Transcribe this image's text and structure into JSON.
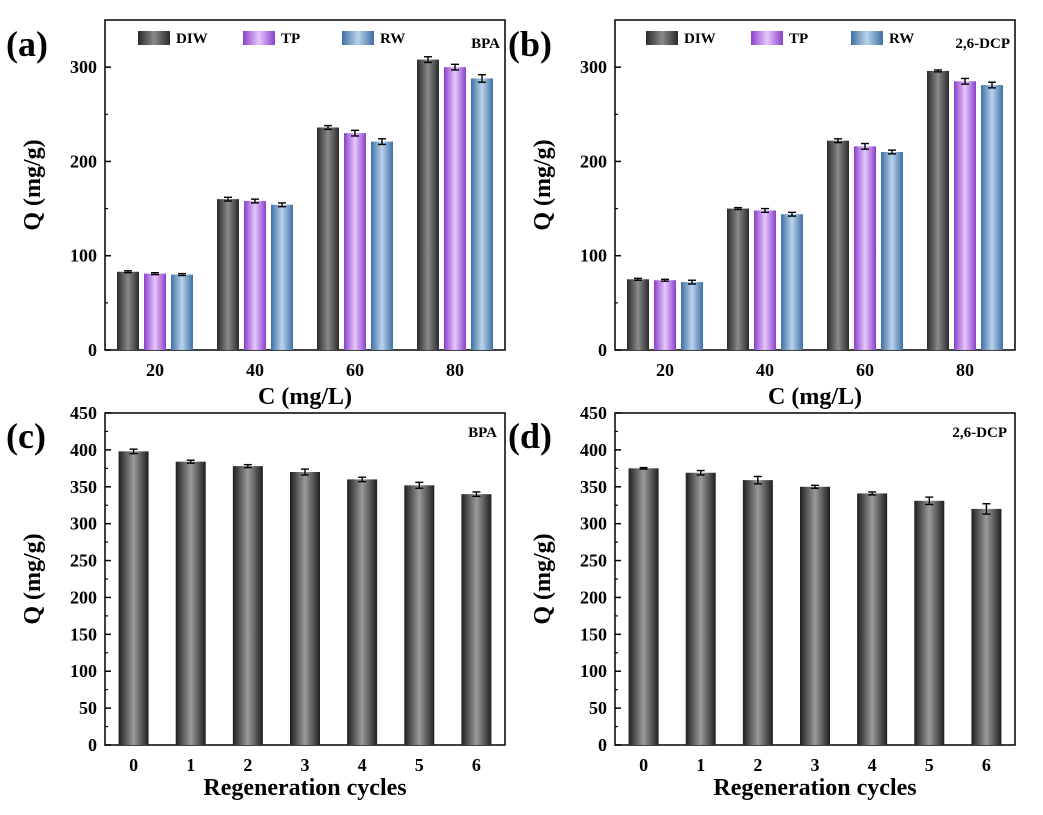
{
  "colors": {
    "DIW": "#555555",
    "TP": "#b46ae6",
    "RW": "#5b8fc4",
    "cycle_bar": "#4f4f4f",
    "axis": "#000000"
  },
  "chart_data": [
    {
      "type": "bar",
      "panel": "(a)",
      "corner_label": "BPA",
      "xlabel": "C (mg/L)",
      "ylabel": "Q (mg/g)",
      "ylim": [
        0,
        350
      ],
      "yticks": [
        0,
        100,
        200,
        300
      ],
      "categories": [
        "20",
        "40",
        "60",
        "80"
      ],
      "legend": "top",
      "series": [
        {
          "name": "DIW",
          "values": [
            83,
            160,
            236,
            308
          ],
          "errors": [
            1,
            2,
            2,
            3
          ]
        },
        {
          "name": "TP",
          "values": [
            81,
            158,
            230,
            300
          ],
          "errors": [
            1,
            2,
            3,
            3
          ]
        },
        {
          "name": "RW",
          "values": [
            80,
            154,
            221,
            288
          ],
          "errors": [
            1,
            2,
            3,
            4
          ]
        }
      ]
    },
    {
      "type": "bar",
      "panel": "(b)",
      "corner_label": "2,6-DCP",
      "xlabel": "C (mg/L)",
      "ylabel": "Q (mg/g)",
      "ylim": [
        0,
        350
      ],
      "yticks": [
        0,
        100,
        200,
        300
      ],
      "categories": [
        "20",
        "40",
        "60",
        "80"
      ],
      "legend": "top",
      "series": [
        {
          "name": "DIW",
          "values": [
            75,
            150,
            222,
            296
          ],
          "errors": [
            1,
            1,
            2,
            1
          ]
        },
        {
          "name": "TP",
          "values": [
            74,
            148,
            216,
            285
          ],
          "errors": [
            1,
            2,
            3,
            3
          ]
        },
        {
          "name": "RW",
          "values": [
            72,
            144,
            210,
            281
          ],
          "errors": [
            2,
            2,
            2,
            3
          ]
        }
      ]
    },
    {
      "type": "bar",
      "panel": "(c)",
      "corner_label": "BPA",
      "xlabel": "Regeneration cycles",
      "ylabel": "Q (mg/g)",
      "ylim": [
        0,
        450
      ],
      "yticks": [
        0,
        50,
        100,
        150,
        200,
        250,
        300,
        350,
        400,
        450
      ],
      "categories": [
        "0",
        "1",
        "2",
        "3",
        "4",
        "5",
        "6"
      ],
      "values": [
        398,
        384,
        378,
        370,
        360,
        352,
        340
      ],
      "errors": [
        3,
        2,
        2,
        4,
        3,
        4,
        3
      ]
    },
    {
      "type": "bar",
      "panel": "(d)",
      "corner_label": "2,6-DCP",
      "xlabel": "Regeneration cycles",
      "ylabel": "Q (mg/g)",
      "ylim": [
        0,
        450
      ],
      "yticks": [
        0,
        50,
        100,
        150,
        200,
        250,
        300,
        350,
        400,
        450
      ],
      "categories": [
        "0",
        "1",
        "2",
        "3",
        "4",
        "5",
        "6"
      ],
      "values": [
        375,
        369,
        359,
        350,
        341,
        331,
        320
      ],
      "errors": [
        1,
        3,
        5,
        2,
        2,
        5,
        7
      ]
    }
  ]
}
